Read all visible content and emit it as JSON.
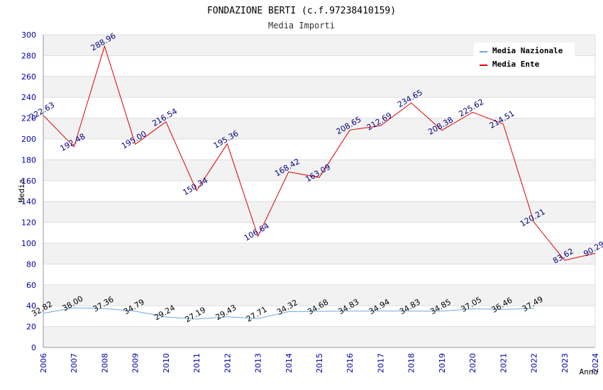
{
  "chart_data": {
    "type": "line",
    "title": "FONDAZIONE BERTI (c.f.97238410159)",
    "subtitle": "Media Importi",
    "xlabel": "Anno",
    "ylabel": "Media",
    "ylim": [
      0,
      300
    ],
    "yticks": [
      0,
      20,
      40,
      60,
      80,
      100,
      120,
      140,
      160,
      180,
      200,
      220,
      240,
      260,
      280,
      300
    ],
    "categories": [
      "2006",
      "2007",
      "2008",
      "2009",
      "2010",
      "2011",
      "2012",
      "2013",
      "2014",
      "2015",
      "2016",
      "2017",
      "2018",
      "2019",
      "2020",
      "2021",
      "2022",
      "2023",
      "2024"
    ],
    "grid": "horizontal alternating bands",
    "legend_position": "top-right",
    "series": [
      {
        "name": "Media Nazionale",
        "color": "#6fa8dc",
        "label_color": "#000000",
        "values": [
          32.82,
          38.0,
          37.36,
          34.79,
          29.24,
          27.19,
          29.43,
          27.71,
          34.32,
          34.68,
          34.83,
          34.94,
          34.83,
          34.85,
          37.05,
          36.46,
          37.49,
          null,
          null
        ],
        "labels": [
          "32.82",
          "38.00",
          "37.36",
          "34.79",
          "29.24",
          "27.19",
          "29.43",
          "27.71",
          "34.32",
          "34.68",
          "34.83",
          "34.94",
          "34.83",
          "34.85",
          "37.05",
          "36.46",
          "37.49",
          "",
          ""
        ]
      },
      {
        "name": "Media Ente",
        "color": "#dd0000",
        "label_color": "#000080",
        "values": [
          222.63,
          192.48,
          288.96,
          195.0,
          216.54,
          150.34,
          195.36,
          106.64,
          168.42,
          163.09,
          208.65,
          212.69,
          234.65,
          208.38,
          225.62,
          214.51,
          120.21,
          83.62,
          90.29
        ],
        "labels": [
          "222.63",
          "192.48",
          "288.96",
          "195.00",
          "216.54",
          "150.34",
          "195.36",
          "106.64",
          "168.42",
          "163.09",
          "208.65",
          "212.69",
          "234.65",
          "208.38",
          "225.62",
          "214.51",
          "120.21",
          "83.62",
          "90.29"
        ]
      }
    ]
  }
}
